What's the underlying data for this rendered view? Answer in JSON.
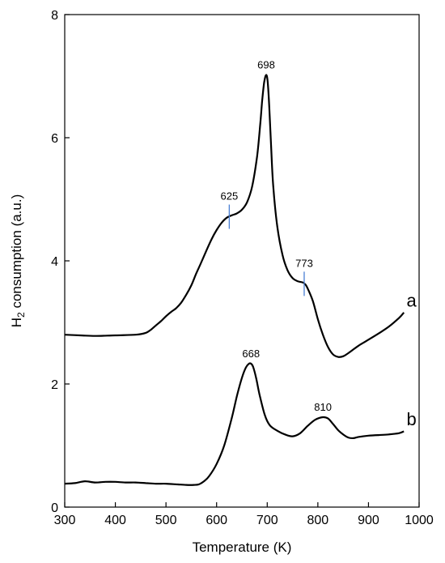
{
  "chart_data": {
    "type": "line",
    "xlabel": "Temperature (K)",
    "ylabel_main": "H",
    "ylabel_sub": "2",
    "ylabel_rest": " consumption (a.u.)",
    "xlim": [
      300,
      1000
    ],
    "ylim": [
      0,
      8
    ],
    "x_ticks": [
      300,
      400,
      500,
      600,
      700,
      800,
      900,
      1000
    ],
    "y_ticks": [
      0,
      2,
      4,
      6,
      8
    ],
    "grid": false,
    "series": [
      {
        "name": "a",
        "color": "#000000",
        "x": [
          300,
          330,
          360,
          400,
          440,
          460,
          470,
          480,
          490,
          500,
          510,
          520,
          530,
          540,
          550,
          560,
          570,
          580,
          590,
          600,
          610,
          620,
          630,
          640,
          650,
          660,
          670,
          680,
          686,
          690,
          694,
          698,
          701,
          704,
          708,
          712,
          720,
          730,
          740,
          750,
          760,
          770,
          775,
          780,
          790,
          800,
          810,
          820,
          830,
          840,
          850,
          860,
          870,
          880,
          890,
          900,
          920,
          940,
          960,
          970
        ],
        "y": [
          2.8,
          2.79,
          2.78,
          2.79,
          2.8,
          2.83,
          2.88,
          2.95,
          3.02,
          3.1,
          3.17,
          3.23,
          3.32,
          3.45,
          3.6,
          3.8,
          3.98,
          4.17,
          4.35,
          4.5,
          4.62,
          4.7,
          4.74,
          4.77,
          4.83,
          4.95,
          5.2,
          5.7,
          6.2,
          6.6,
          6.9,
          7.02,
          6.9,
          6.5,
          5.8,
          5.2,
          4.55,
          4.1,
          3.85,
          3.72,
          3.67,
          3.65,
          3.62,
          3.55,
          3.35,
          3.05,
          2.8,
          2.6,
          2.48,
          2.44,
          2.45,
          2.5,
          2.56,
          2.62,
          2.67,
          2.72,
          2.82,
          2.93,
          3.07,
          3.16
        ]
      },
      {
        "name": "b",
        "color": "#000000",
        "x": [
          300,
          320,
          340,
          360,
          380,
          400,
          420,
          440,
          460,
          480,
          500,
          520,
          540,
          555,
          565,
          575,
          585,
          600,
          615,
          630,
          640,
          650,
          658,
          664,
          668,
          672,
          678,
          685,
          695,
          705,
          720,
          735,
          750,
          765,
          780,
          795,
          810,
          820,
          830,
          840,
          850,
          860,
          870,
          880,
          900,
          920,
          940,
          960,
          970
        ],
        "y": [
          0.38,
          0.39,
          0.42,
          0.4,
          0.41,
          0.41,
          0.4,
          0.4,
          0.39,
          0.38,
          0.38,
          0.37,
          0.36,
          0.36,
          0.37,
          0.42,
          0.5,
          0.7,
          1.0,
          1.45,
          1.8,
          2.1,
          2.27,
          2.33,
          2.33,
          2.28,
          2.1,
          1.82,
          1.5,
          1.33,
          1.24,
          1.18,
          1.15,
          1.2,
          1.32,
          1.42,
          1.46,
          1.44,
          1.35,
          1.25,
          1.18,
          1.13,
          1.12,
          1.14,
          1.16,
          1.17,
          1.18,
          1.2,
          1.23
        ]
      }
    ],
    "peak_labels": [
      {
        "text": "698",
        "x": 698,
        "y": 7.02,
        "marker": false
      },
      {
        "text": "625",
        "x": 625,
        "y": 4.73,
        "marker": true
      },
      {
        "text": "773",
        "x": 773,
        "y": 3.64,
        "marker": true
      },
      {
        "text": "668",
        "x": 668,
        "y": 2.33,
        "marker": false
      },
      {
        "text": "810",
        "x": 810,
        "y": 1.46,
        "marker": false
      }
    ],
    "marker_color": "#4a7fd4",
    "series_labels": [
      {
        "text": "a",
        "x": 985,
        "y": 3.35
      },
      {
        "text": "b",
        "x": 985,
        "y": 1.42
      }
    ]
  }
}
